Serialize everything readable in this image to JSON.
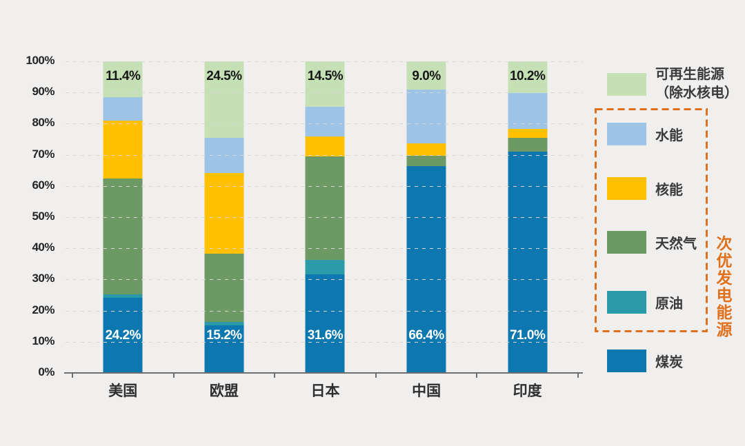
{
  "chart_data": {
    "type": "bar",
    "variant": "stacked-100-percent",
    "unit": "%",
    "categories": [
      "美国",
      "欧盟",
      "日本",
      "中国",
      "印度"
    ],
    "series": [
      {
        "key": "coal",
        "name": "煤炭",
        "color": "#0d78b0",
        "values": [
          24.2,
          15.2,
          31.6,
          66.4,
          71.0
        ]
      },
      {
        "key": "oil",
        "name": "原油",
        "color": "#2b9aa9",
        "values": [
          1.0,
          1.2,
          4.7,
          0,
          0
        ]
      },
      {
        "key": "gas",
        "name": "天然气",
        "color": "#6d9a64",
        "values": [
          37.1,
          21.9,
          33.2,
          3.2,
          4.4
        ]
      },
      {
        "key": "nuclear",
        "name": "核能",
        "color": "#ffc000",
        "values": [
          18.6,
          25.9,
          6.4,
          4.0,
          3.0
        ]
      },
      {
        "key": "hydro",
        "name": "水能",
        "color": "#9dc3e6",
        "values": [
          7.7,
          11.3,
          9.6,
          17.4,
          11.4
        ]
      },
      {
        "key": "renewables",
        "name": "可再生能源（除水核电）",
        "color": "#c5e0b4",
        "values": [
          11.4,
          24.5,
          14.5,
          9.0,
          10.2
        ]
      }
    ],
    "data_labels": {
      "renewables_top": [
        "11.4%",
        "24.5%",
        "14.5%",
        "9.0%",
        "10.2%"
      ],
      "coal_bottom": [
        "24.2%",
        "15.2%",
        "31.6%",
        "66.4%",
        "71.0%"
      ]
    },
    "y_ticks": [
      "100%",
      "90%",
      "80%",
      "70%",
      "60%",
      "50%",
      "40%",
      "30%",
      "20%",
      "10%",
      "0%"
    ],
    "ylim": [
      0,
      100
    ],
    "grid": "horizontal-dashed",
    "legend_position": "right"
  },
  "legend": {
    "items": [
      {
        "key": "renewables",
        "label": "可再生能源（除水核电）",
        "label_lines": [
          "可再生能源",
          "（除水核电）"
        ],
        "color": "#c5e0b4",
        "in_group": false
      },
      {
        "key": "hydro",
        "label": "水能",
        "color": "#9dc3e6",
        "in_group": true
      },
      {
        "key": "nuclear",
        "label": "核能",
        "color": "#ffc000",
        "in_group": true
      },
      {
        "key": "gas",
        "label": "天然气",
        "color": "#6d9a64",
        "in_group": true
      },
      {
        "key": "oil",
        "label": "原油",
        "color": "#2b9aa9",
        "in_group": true
      },
      {
        "key": "coal",
        "label": "煤炭",
        "color": "#0d78b0",
        "in_group": false
      }
    ],
    "group": {
      "label": "次优发电能源",
      "color": "#e0701c",
      "style": "dashed-box"
    }
  },
  "colors": {
    "background": "#f0efee",
    "axis": "#6e6e6e",
    "gridline": "#d8d7d3",
    "label_dark": "#161616",
    "label_light": "#ffffff",
    "accent_orange": "#e0701c"
  }
}
